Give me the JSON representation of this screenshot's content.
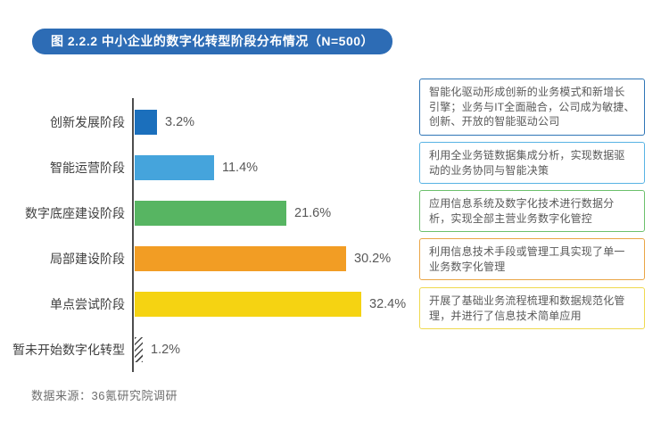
{
  "title": "图 2.2.2 中小企业的数字化转型阶段分布情况（N=500）",
  "source": "数据来源：36氪研究院调研",
  "colors": {
    "banner": "#2d6cb5",
    "axis": "#4d4d4d",
    "value_label": "#595959"
  },
  "chart_data": {
    "type": "bar",
    "orientation": "horizontal",
    "title": "图 2.2.2 中小企业的数字化转型阶段分布情况（N=500）",
    "sample_size": "N=500",
    "categories": [
      "创新发展阶段",
      "智能运营阶段",
      "数字底座建设阶段",
      "局部建设阶段",
      "单点尝试阶段",
      "暂未开始数字化转型"
    ],
    "values": [
      3.2,
      11.4,
      21.6,
      30.2,
      32.4,
      1.2
    ],
    "value_labels": [
      "3.2%",
      "11.4%",
      "21.6%",
      "30.2%",
      "32.4%",
      "1.2%"
    ],
    "bar_colors": [
      "#1b6fbc",
      "#45a4dc",
      "#57b562",
      "#f29d24",
      "#f5d312",
      "hatched"
    ],
    "xlim": [
      0,
      35
    ],
    "grid": false,
    "legend": "none",
    "source": "数据来源：36氪研究院调研"
  },
  "annotations": [
    {
      "text": "智能化驱动形成创新的业务模式和新增长引擎；业务与IT全面融合，公司成为敏捷、创新、开放的智能驱动公司",
      "border_color": "#2e75b6"
    },
    {
      "text": "利用全业务链数据集成分析，实现数据驱动的业务协同与智能决策",
      "border_color": "#58b3e4"
    },
    {
      "text": "应用信息系统及数字化技术进行数据分析，实现全部主营业务数字化管控",
      "border_color": "#6cc06c"
    },
    {
      "text": "利用信息技术手段或管理工具实现了单一业务数字化管理",
      "border_color": "#eaa545"
    },
    {
      "text": "开展了基础业务流程梳理和数据规范化管理，并进行了信息技术简单应用",
      "border_color": "#efd94e"
    }
  ]
}
